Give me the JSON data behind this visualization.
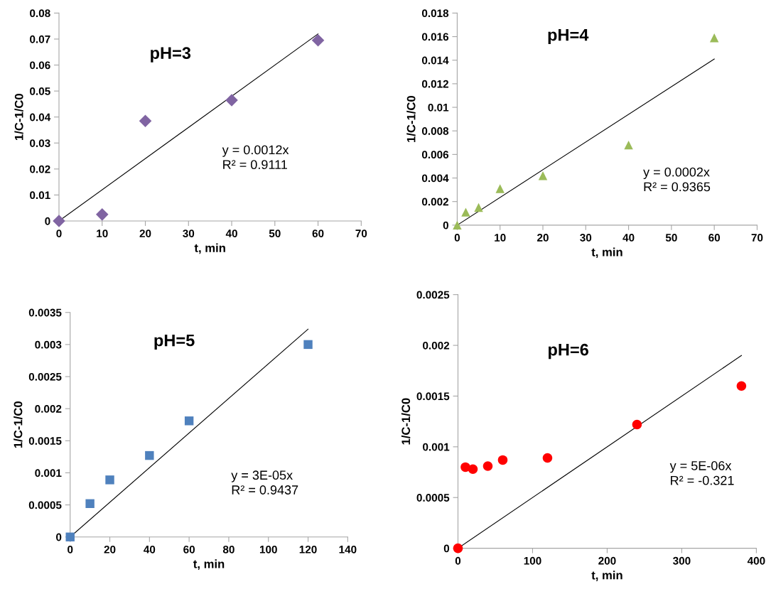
{
  "chart_data": [
    {
      "type": "scatter",
      "title": "pH=3",
      "xlabel": "t, min",
      "ylabel": "1/C-1/C0",
      "marker": "diamond",
      "grid": false,
      "series": [
        {
          "color": "#8064a2",
          "x": [
            0,
            10,
            20,
            40,
            60
          ],
          "values": [
            0,
            0.0025,
            0.0385,
            0.0465,
            0.0695
          ]
        },
        {
          "type": "line",
          "color": "#000000",
          "marker": "none",
          "x": [
            0,
            60
          ],
          "values": [
            0,
            0.072
          ]
        }
      ],
      "xlim": [
        0,
        70
      ],
      "xticks": [
        0,
        10,
        20,
        30,
        40,
        50,
        60,
        70
      ],
      "ylim": [
        0,
        0.08
      ],
      "yticks": [
        0,
        0.01,
        0.02,
        0.03,
        0.04,
        0.05,
        0.06,
        0.07,
        0.08
      ],
      "annotations": [
        "y = 0.0012x\nR² = 0.9111"
      ]
    },
    {
      "type": "scatter",
      "title": "pH=4",
      "xlabel": "t, min",
      "ylabel": "1/C-1/C0",
      "marker": "triangle",
      "grid": false,
      "series": [
        {
          "color": "#9bbb59",
          "x": [
            0,
            2,
            5,
            10,
            20,
            40,
            60
          ],
          "values": [
            0,
            0.0011,
            0.0015,
            0.0031,
            0.0042,
            0.0068,
            0.0159
          ]
        },
        {
          "type": "line",
          "color": "#000000",
          "marker": "none",
          "x": [
            0,
            60
          ],
          "values": [
            0,
            0.0141
          ]
        }
      ],
      "xlim": [
        0,
        70
      ],
      "xticks": [
        0,
        10,
        20,
        30,
        40,
        50,
        60,
        70
      ],
      "ylim": [
        0,
        0.018
      ],
      "yticks": [
        0,
        0.002,
        0.004,
        0.006,
        0.008,
        0.01,
        0.012,
        0.014,
        0.016,
        0.018
      ],
      "annotations": [
        "y = 0.0002x\nR² = 0.9365"
      ]
    },
    {
      "type": "scatter",
      "title": "pH=5",
      "xlabel": "t, min",
      "ylabel": "1/C-1/C0",
      "marker": "square",
      "grid": false,
      "series": [
        {
          "color": "#4f81bd",
          "x": [
            0,
            10,
            20,
            40,
            60,
            120
          ],
          "values": [
            0,
            0.00052,
            0.00089,
            0.00127,
            0.00181,
            0.003
          ]
        },
        {
          "type": "line",
          "color": "#000000",
          "marker": "none",
          "x": [
            0,
            120
          ],
          "values": [
            0,
            0.00324
          ]
        }
      ],
      "xlim": [
        0,
        140
      ],
      "xticks": [
        0,
        20,
        40,
        60,
        80,
        100,
        120,
        140
      ],
      "ylim": [
        0,
        0.0035
      ],
      "yticks": [
        0,
        0.0005,
        0.001,
        0.0015,
        0.002,
        0.0025,
        0.003,
        0.0035
      ],
      "annotations": [
        "y = 3E-05x\nR² = 0.9437"
      ]
    },
    {
      "type": "scatter",
      "title": "pH=6",
      "xlabel": "t, min",
      "ylabel": "1/C-1/C0",
      "marker": "circle",
      "grid": false,
      "series": [
        {
          "color": "#ff0000",
          "x": [
            0,
            10,
            20,
            40,
            60,
            120,
            240,
            380
          ],
          "values": [
            0,
            0.0008,
            0.00078,
            0.00081,
            0.00087,
            0.00089,
            0.00122,
            0.0016
          ]
        },
        {
          "type": "line",
          "color": "#000000",
          "marker": "none",
          "x": [
            0,
            380
          ],
          "values": [
            0,
            0.0019
          ]
        }
      ],
      "xlim": [
        0,
        400
      ],
      "xticks": [
        0,
        100,
        200,
        300,
        400
      ],
      "ylim": [
        0,
        0.0025
      ],
      "yticks": [
        0,
        0.0005,
        0.001,
        0.0015,
        0.002,
        0.0025
      ],
      "annotations": [
        "y = 5E-06x\nR² = -0.321"
      ]
    }
  ]
}
